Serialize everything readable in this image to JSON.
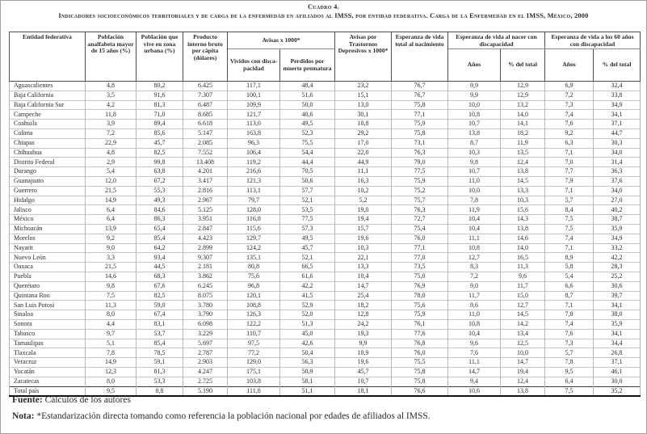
{
  "title": "Cuadro 4.",
  "subtitle": "Indicadores socioeconómicos territoriales y de carga de la enfermedad en afiliados al IMSS, por entidad federativa. Carga de la Enfermedad en el IMSS, México, 2000",
  "table": {
    "col_headers": {
      "entidad": "Entidad federativa",
      "analfabeta": "Población analfabeta mayor de 15 años (%)",
      "urbana": "Población que vive en zona urbana (%)",
      "pib": "Producto interno bruto per cápita (dólares)",
      "avisas_group": "Avisas x 1000*",
      "avisas_vividos": "Vividos con disca­pacidad",
      "avisas_perdidos": "Perdidos por muerte prematura",
      "avisas_depresivos": "Avisas por Trastornos Depresivos x 1000*",
      "esperanza_total": "Esperanza de vida total al nacimiento",
      "esp_nacer_group": "Esperanza de vida al nacer con discapacidad",
      "esp_60_group": "Esperanza de vida a los 60 años con discapacidad",
      "anios_nacer": "Años",
      "pct_nacer": "% del total",
      "anios_60": "Años",
      "pct_60": "% del total"
    },
    "rows": [
      {
        "name": "Aguascalientes",
        "values": [
          "4,8",
          "80,2",
          "6.425",
          "117,1",
          "48,4",
          "23,2",
          "76,7",
          "9,9",
          "12,9",
          "6,9",
          "32,4"
        ]
      },
      {
        "name": "Baja California",
        "values": [
          "3,5",
          "91,6",
          "7.307",
          "100,1",
          "51,6",
          "15,1",
          "76,7",
          "9,9",
          "12,9",
          "7,2",
          "33,8"
        ]
      },
      {
        "name": "Baja California Sur",
        "values": [
          "4,2",
          "81,3",
          "6.487",
          "109,9",
          "50,0",
          "13,0",
          "75,8",
          "10,0",
          "13,2",
          "7,3",
          "34,9"
        ]
      },
      {
        "name": "Campeche",
        "values": [
          "11,8",
          "71,0",
          "8.685",
          "121,7",
          "40,6",
          "30,1",
          "77,1",
          "10,8",
          "14,0",
          "7,4",
          "34,1"
        ]
      },
      {
        "name": "Coahuila",
        "values": [
          "3,9",
          "89,4",
          "6.618",
          "113,0",
          "49,5",
          "10,8",
          "75,9",
          "10,7",
          "14,1",
          "7,6",
          "37,1"
        ]
      },
      {
        "name": "Colima",
        "values": [
          "7,2",
          "85,6",
          "5.147",
          "163,8",
          "52,3",
          "29,2",
          "75,8",
          "13,8",
          "18,2",
          "9,2",
          "44,7"
        ]
      },
      {
        "name": "Chiapas",
        "values": [
          "22,9",
          "45,7",
          "2.085",
          "96,3",
          "75,5",
          "17,0",
          "73,1",
          "8,7",
          "11,9",
          "6,3",
          "30,3"
        ]
      },
      {
        "name": "Chihuahua",
        "values": [
          "4,8",
          "82,5",
          "7.552",
          "106,4",
          "54,4",
          "22,0",
          "76,3",
          "10,3",
          "13,5",
          "7,1",
          "34,0"
        ]
      },
      {
        "name": "Distrito Federal",
        "values": [
          "2,9",
          "99,8",
          "13.408",
          "119,2",
          "44,4",
          "44,9",
          "79,0",
          "9,8",
          "12,4",
          "7,0",
          "31,4"
        ]
      },
      {
        "name": "Durango",
        "values": [
          "5,4",
          "63,8",
          "4.201",
          "216,6",
          "70,5",
          "11,1",
          "77,5",
          "10,7",
          "13,8",
          "7,7",
          "36,3"
        ]
      },
      {
        "name": "Guanajuato",
        "values": [
          "12,0",
          "67,2",
          "3.417",
          "121,3",
          "50,6",
          "16,3",
          "75,9",
          "11,0",
          "14,5",
          "7,9",
          "37,6"
        ]
      },
      {
        "name": "Guerrero",
        "values": [
          "21,5",
          "55,3",
          "2.816",
          "113,1",
          "57,7",
          "10,2",
          "75,2",
          "10,0",
          "13,3",
          "7,1",
          "34,0"
        ]
      },
      {
        "name": "Hidalgo",
        "values": [
          "14,9",
          "49,3",
          "2.967",
          "79,7",
          "52,1",
          "5,2",
          "75,7",
          "7,8",
          "10,3",
          "5,7",
          "27,0"
        ]
      },
      {
        "name": "Jalisco",
        "values": [
          "6,4",
          "84,6",
          "5.125",
          "128,0",
          "53,5",
          "19,0",
          "76,3",
          "11,9",
          "15,6",
          "8,4",
          "40,2"
        ]
      },
      {
        "name": "México",
        "values": [
          "6,4",
          "86,3",
          "3.951",
          "116,8",
          "77,5",
          "19,4",
          "72,7",
          "10,4",
          "14,3",
          "7,5",
          "38,7"
        ]
      },
      {
        "name": "Michoacán",
        "values": [
          "13,9",
          "65,4",
          "2.847",
          "115,6",
          "57,3",
          "15,7",
          "75,4",
          "10,4",
          "13,8",
          "7,5",
          "35,9"
        ]
      },
      {
        "name": "Morelos",
        "values": [
          "9,2",
          "85,4",
          "4.423",
          "129,7",
          "49,5",
          "19,6",
          "76,0",
          "11,1",
          "14,6",
          "7,4",
          "34,9"
        ]
      },
      {
        "name": "Nayarit",
        "values": [
          "9,0",
          "64,2",
          "2.899",
          "124,2",
          "45,7",
          "10,3",
          "77,1",
          "10,8",
          "14,0",
          "7,1",
          "33,2"
        ]
      },
      {
        "name": "Nuevo León",
        "values": [
          "3,3",
          "93,4",
          "9.307",
          "135,1",
          "52,1",
          "22,1",
          "77,0",
          "12,7",
          "16,5",
          "8,9",
          "42,2"
        ]
      },
      {
        "name": "Oaxaca",
        "values": [
          "21,5",
          "44,5",
          "2.181",
          "80,8",
          "66,5",
          "13,3",
          "73,5",
          "8,3",
          "11,3",
          "5,8",
          "28,3"
        ]
      },
      {
        "name": "Puebla",
        "values": [
          "14,6",
          "68,3",
          "3.862",
          "75,6",
          "61,6",
          "10,4",
          "75,0",
          "7,2",
          "9,6",
          "5,4",
          "25,2"
        ]
      },
      {
        "name": "Querétaro",
        "values": [
          "9,8",
          "67,6",
          "6.245",
          "96,8",
          "42,2",
          "14,7",
          "76,9",
          "9,0",
          "11,7",
          "6,6",
          "30,6"
        ]
      },
      {
        "name": "Quintana Roo",
        "values": [
          "7,5",
          "82,5",
          "8.075",
          "120,1",
          "41,5",
          "25,4",
          "78,0",
          "11,7",
          "15,0",
          "8,7",
          "39,7"
        ]
      },
      {
        "name": "San Luis Potosí",
        "values": [
          "11,3",
          "59,0",
          "3.780",
          "108,8",
          "52,9",
          "18,2",
          "75,6",
          "9,6",
          "12,7",
          "7,1",
          "34,1"
        ]
      },
      {
        "name": "Sinaloa",
        "values": [
          "8,0",
          "67,4",
          "3.790",
          "126,3",
          "52,0",
          "12,8",
          "75,9",
          "11,0",
          "14,5",
          "7,8",
          "38,0"
        ]
      },
      {
        "name": "Sonora",
        "values": [
          "4,4",
          "83,1",
          "6.098",
          "122,2",
          "51,3",
          "24,2",
          "76,1",
          "10,8",
          "14,2",
          "7,4",
          "35,9"
        ]
      },
      {
        "name": "Tabasco",
        "values": [
          "9,7",
          "53,7",
          "3.229",
          "110,7",
          "45,0",
          "19,3",
          "77,6",
          "10,4",
          "13,4",
          "7,6",
          "34,1"
        ]
      },
      {
        "name": "Tamaulipas",
        "values": [
          "5,1",
          "85,4",
          "5.697",
          "97,5",
          "42,6",
          "9,9",
          "76,8",
          "9,6",
          "12,5",
          "7,3",
          "34,4"
        ]
      },
      {
        "name": "Tlaxcala",
        "values": [
          "7,8",
          "78,5",
          "2.787",
          "77,2",
          "50,4",
          "10,9",
          "76,0",
          "7,6",
          "10,0",
          "5,7",
          "26,8"
        ]
      },
      {
        "name": "Veracruz",
        "values": [
          "14,9",
          "59,1",
          "2.903",
          "129,0",
          "56,3",
          "19,6",
          "75,5",
          "11,1",
          "14,7",
          "7,8",
          "37,1"
        ]
      },
      {
        "name": "Yucatán",
        "values": [
          "12,3",
          "81,3",
          "4.247",
          "175,1",
          "50,9",
          "45,7",
          "75,8",
          "14,7",
          "19,4",
          "9,5",
          "46,1"
        ]
      },
      {
        "name": "Zacatecas",
        "values": [
          "8,0",
          "53,3",
          "2.725",
          "103,8",
          "58,1",
          "10,7",
          "75,8",
          "9,4",
          "12,4",
          "6,4",
          "30,0"
        ]
      },
      {
        "name": "Total país",
        "values": [
          "9,5",
          "0,8",
          "5.190",
          "111,8",
          "51,1",
          "18,1",
          "76,6",
          "10,6",
          "13,8",
          "7,5",
          "35,2"
        ]
      }
    ]
  },
  "footer": {
    "fuente_label": "Fuente:",
    "fuente_text": " Cálculos de los autores",
    "nota_label": "Nota:",
    "nota_text": " *Estandarización directa tomando como referencia la población nacional por edades de afiliados al IMSS."
  }
}
